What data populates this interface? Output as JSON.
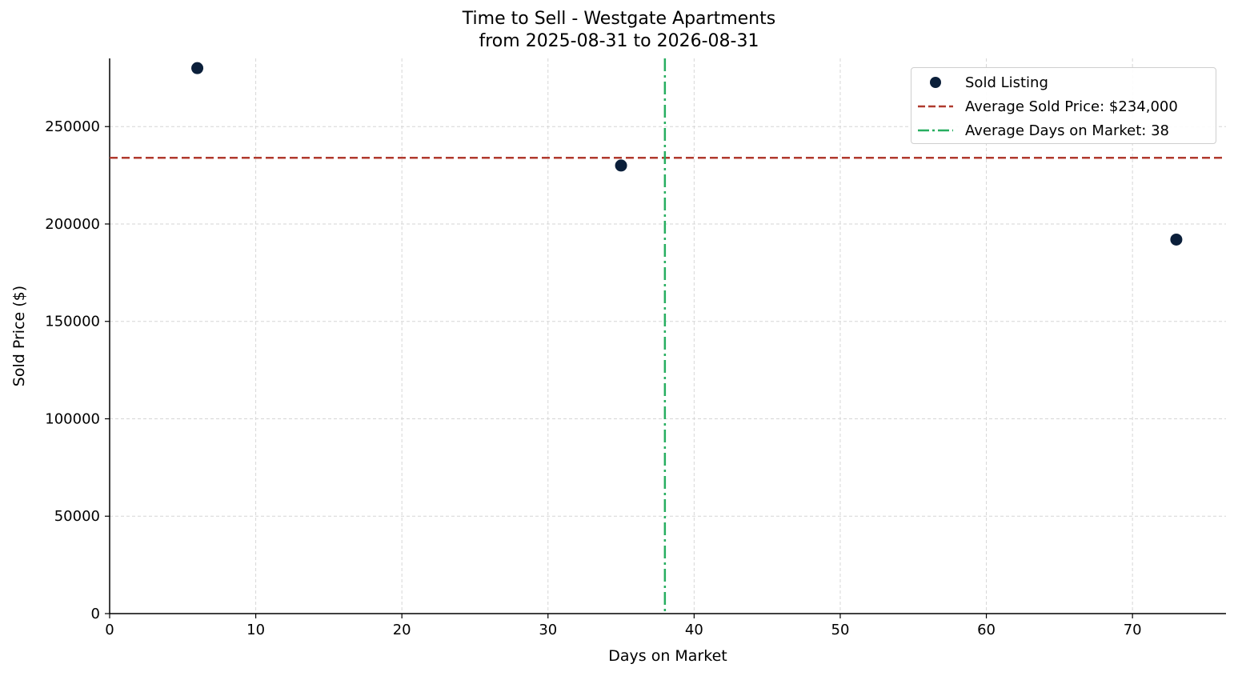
{
  "chart_data": {
    "type": "scatter",
    "title": "Time to Sell - Westgate Apartments",
    "subtitle": "from 2025-08-31 to 2026-08-31",
    "xlabel": "Days on Market",
    "ylabel": "Sold Price ($)",
    "xlim": [
      0,
      76.4
    ],
    "ylim": [
      0,
      285000
    ],
    "xticks": [
      0,
      10,
      20,
      30,
      40,
      50,
      60,
      70
    ],
    "yticks": [
      0,
      50000,
      100000,
      150000,
      200000,
      250000
    ],
    "grid": true,
    "legend_position": "top-right",
    "series": [
      {
        "name": "Sold Listing",
        "color": "#0b1f3a",
        "points": [
          {
            "x": 6,
            "y": 280000
          },
          {
            "x": 35,
            "y": 230000
          },
          {
            "x": 73,
            "y": 192000
          }
        ]
      }
    ],
    "reference_lines": [
      {
        "name": "Average Sold Price: $234,000",
        "orientation": "horizontal",
        "value": 234000,
        "color": "#b03a2e",
        "style": "dashed"
      },
      {
        "name": "Average Days on Market: 38",
        "orientation": "vertical",
        "value": 38,
        "color": "#27ae60",
        "style": "dashdot"
      }
    ]
  }
}
